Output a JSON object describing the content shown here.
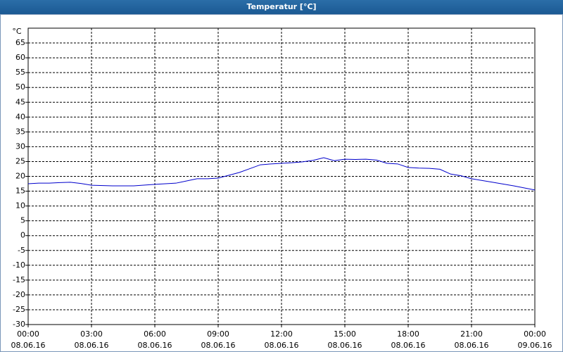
{
  "chart_data": {
    "type": "line",
    "title": "Temperatur [°C]",
    "y_unit": "°C",
    "x": [
      0,
      0.5,
      1,
      1.5,
      2,
      2.5,
      3,
      4,
      5,
      6,
      7,
      8,
      8.5,
      9,
      10,
      10.5,
      11,
      11.5,
      12,
      12.5,
      13,
      13.5,
      14,
      14.5,
      15,
      15.5,
      16,
      16.5,
      17,
      17.5,
      18,
      18.5,
      19,
      19.5,
      20,
      20.5,
      21,
      22,
      23,
      24
    ],
    "series": [
      {
        "name": "Temperatur",
        "color": "#0000cc",
        "values": [
          17.5,
          17.7,
          17.7,
          17.9,
          18,
          17.6,
          17,
          16.8,
          16.8,
          17.3,
          17.7,
          19.2,
          19.2,
          19.4,
          21.3,
          22.6,
          23.9,
          24.2,
          24.4,
          24.6,
          24.9,
          25.4,
          26.3,
          25.3,
          25.8,
          25.7,
          25.8,
          25.5,
          24.4,
          24.2,
          23,
          22.8,
          22.7,
          22.4,
          20.8,
          20.2,
          19.2,
          18,
          16.8,
          15.4
        ]
      }
    ],
    "xlim": [
      0,
      24
    ],
    "xticks": [
      {
        "value": 0,
        "label": "00:00",
        "date": "08.06.16"
      },
      {
        "value": 3,
        "label": "03:00",
        "date": "08.06.16"
      },
      {
        "value": 6,
        "label": "06:00",
        "date": "08.06.16"
      },
      {
        "value": 9,
        "label": "09:00",
        "date": "08.06.16"
      },
      {
        "value": 12,
        "label": "12:00",
        "date": "08.06.16"
      },
      {
        "value": 15,
        "label": "15:00",
        "date": "08.06.16"
      },
      {
        "value": 18,
        "label": "18:00",
        "date": "08.06.16"
      },
      {
        "value": 21,
        "label": "21:00",
        "date": "08.06.16"
      },
      {
        "value": 24,
        "label": "00:00",
        "date": "09.06.16"
      }
    ],
    "ylim": [
      -30,
      70
    ],
    "yticks": [
      -30,
      -25,
      -20,
      -15,
      -10,
      -5,
      0,
      5,
      10,
      15,
      20,
      25,
      30,
      35,
      40,
      45,
      50,
      55,
      60,
      65
    ],
    "grid": true
  }
}
